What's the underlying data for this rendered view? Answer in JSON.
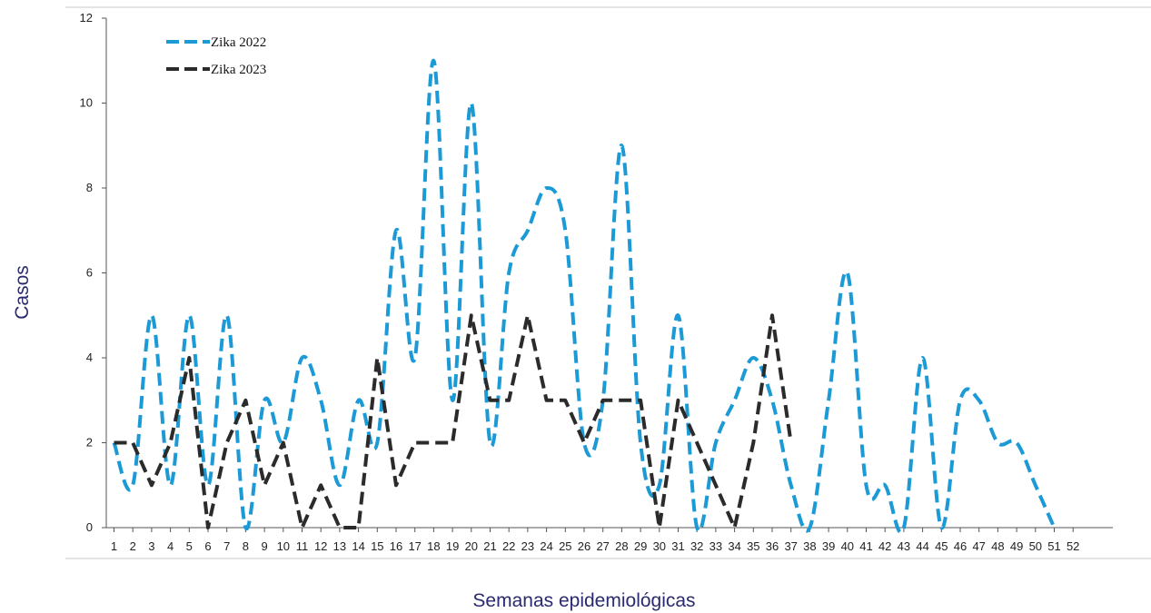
{
  "chart_data": {
    "type": "line",
    "xlabel": "Semanas epidemiológicas",
    "ylabel": "Casos",
    "ylim": [
      0,
      12
    ],
    "yticks": [
      0,
      2,
      4,
      6,
      8,
      10,
      12
    ],
    "x": [
      "1",
      "2",
      "3",
      "4",
      "5",
      "6",
      "7",
      "8",
      "9",
      "10",
      "11",
      "12",
      "13",
      "14",
      "15",
      "16",
      "17",
      "18",
      "19",
      "20",
      "21",
      "22",
      "23",
      "24",
      "25",
      "26",
      "27",
      "28",
      "29",
      "30",
      "31",
      "32",
      "33",
      "34",
      "35",
      "36",
      "37",
      "38",
      "39",
      "40",
      "41",
      "42",
      "43",
      "44",
      "45",
      "46",
      "47",
      "48",
      "49",
      "50",
      "51",
      "52"
    ],
    "legend_position": "top-left",
    "series": [
      {
        "name": "Zika 2022",
        "color": "#1b9ad6",
        "values": [
          2,
          1,
          5,
          1,
          5,
          1,
          5,
          0,
          3,
          2,
          4,
          3,
          1,
          3,
          2,
          7,
          4,
          11,
          3,
          10,
          2,
          6,
          7,
          8,
          7,
          2,
          3,
          9,
          2,
          1,
          5,
          0,
          2,
          3,
          4,
          3,
          1,
          0,
          3,
          6,
          1,
          1,
          0,
          4,
          0,
          3,
          3,
          2,
          2,
          1,
          0,
          null
        ]
      },
      {
        "name": "Zika 2023",
        "color": "#2b2b2b",
        "values": [
          2,
          2,
          1,
          2,
          4,
          0,
          2,
          3,
          1,
          2,
          0,
          1,
          0,
          0,
          4,
          1,
          2,
          2,
          2,
          5,
          3,
          3,
          5,
          3,
          3,
          2,
          3,
          3,
          3,
          0,
          3,
          2,
          1,
          0,
          2,
          5,
          2,
          null,
          null,
          null,
          null,
          null,
          null,
          null,
          null,
          null,
          null,
          null,
          null,
          null,
          null,
          null
        ]
      }
    ]
  }
}
